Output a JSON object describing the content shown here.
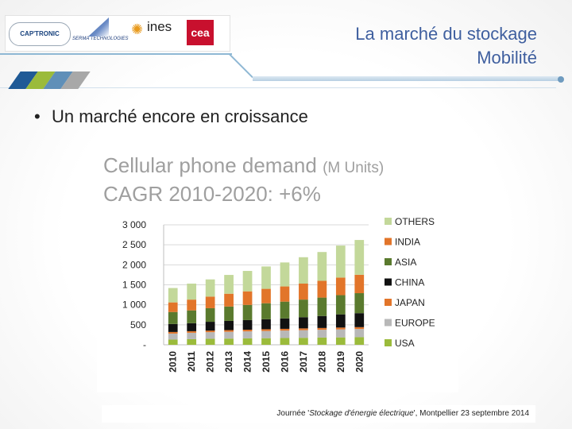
{
  "header": {
    "title_line1": "La marché du stockage",
    "title_line2": "Mobilité"
  },
  "logos": {
    "captronic": "CAP'TRONIC",
    "serma": "SERMA TECHNOLOGIES",
    "ines": "ines",
    "cea": "cea"
  },
  "bullet": {
    "symbol": "•",
    "text": "Un marché encore en croissance"
  },
  "chart_data": {
    "type": "bar",
    "stacked": true,
    "title_line1": "Cellular phone demand",
    "title_units": "(M Units)",
    "title_line2": "CAGR 2010-2020: +6%",
    "categories": [
      "2010",
      "2011",
      "2012",
      "2013",
      "2014",
      "2015",
      "2016",
      "2017",
      "2018",
      "2019",
      "2020"
    ],
    "ylim": [
      0,
      3000
    ],
    "yticks": [
      0,
      500,
      1000,
      1500,
      2000,
      2500,
      3000
    ],
    "ytick_labels": [
      "-",
      "500",
      "1 000",
      "1 500",
      "2 000",
      "2 500",
      "3 000"
    ],
    "grid": true,
    "legend_position": "right",
    "series": [
      {
        "name": "USA",
        "color": "#9bbb3b",
        "values": [
          130,
          140,
          150,
          155,
          160,
          165,
          170,
          175,
          180,
          185,
          190
        ]
      },
      {
        "name": "EUROPE",
        "color": "#b8b8b8",
        "values": [
          150,
          160,
          165,
          170,
          175,
          180,
          185,
          190,
          195,
          200,
          205
        ]
      },
      {
        "name": "JAPAN",
        "color": "#e2752a",
        "values": [
          40,
          40,
          40,
          42,
          42,
          44,
          44,
          45,
          45,
          46,
          46
        ]
      },
      {
        "name": "CHINA",
        "color": "#111111",
        "values": [
          200,
          200,
          220,
          230,
          240,
          250,
          260,
          280,
          300,
          330,
          350
        ]
      },
      {
        "name": "ASIA",
        "color": "#5a7a2e",
        "values": [
          300,
          320,
          340,
          360,
          380,
          400,
          420,
          440,
          460,
          480,
          500
        ]
      },
      {
        "name": "INDIA",
        "color": "#e2752a",
        "values": [
          240,
          270,
          290,
          320,
          340,
          360,
          380,
          400,
          420,
          440,
          460
        ]
      },
      {
        "name": "OTHERS",
        "color": "#c3d89a",
        "values": [
          360,
          400,
          430,
          470,
          510,
          560,
          600,
          660,
          720,
          800,
          870
        ]
      }
    ],
    "legend_order": [
      "OTHERS",
      "INDIA",
      "ASIA",
      "CHINA",
      "JAPAN",
      "EUROPE",
      "USA"
    ]
  },
  "footer": {
    "prefix": "Journée '",
    "event": "Stockage d'énergie électrique",
    "suffix": "', Montpellier 23 septembre 2014"
  },
  "colors": {
    "title_blue": "#3f5f9f",
    "stripe_1": "#1f5a96",
    "stripe_2": "#9bbb3b",
    "stripe_3": "#5f8fb8",
    "stripe_4": "#a8a8a8"
  }
}
